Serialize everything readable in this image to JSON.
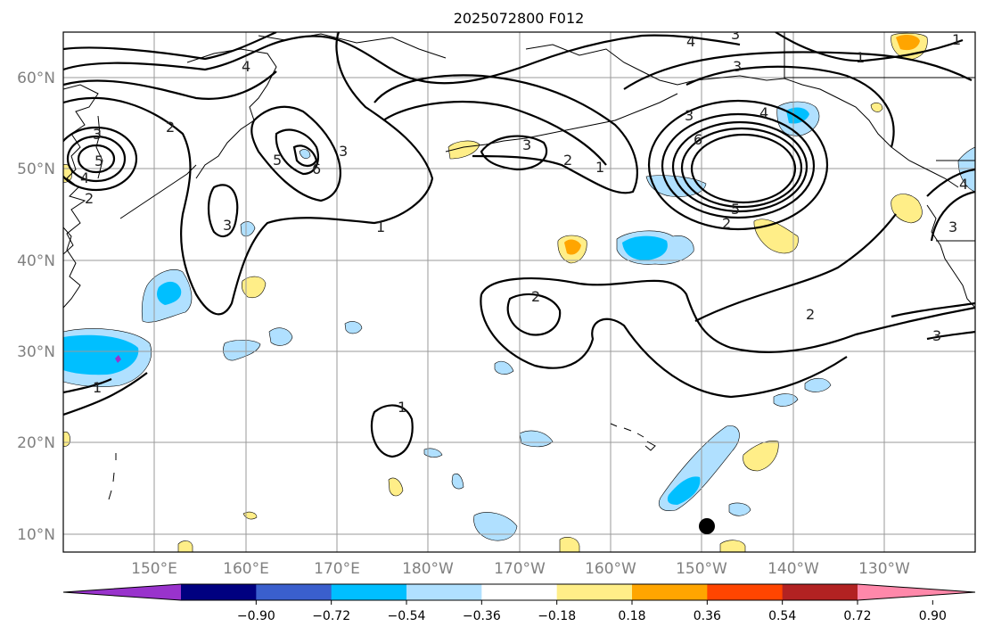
{
  "title": "2025072800 F012",
  "lat_labels": [
    "10°N",
    "20°N",
    "30°N",
    "40°N",
    "50°N",
    "60°N"
  ],
  "lon_labels": [
    "150°E",
    "160°E",
    "170°E",
    "180°W",
    "170°W",
    "160°W",
    "150°W",
    "140°W",
    "130°W"
  ],
  "colorbar": {
    "ticks": [
      "−0.90",
      "−0.72",
      "−0.54",
      "−0.36",
      "−0.18",
      "0.18",
      "0.36",
      "0.54",
      "0.72",
      "0.90"
    ],
    "colors": [
      "#9933cc",
      "#000080",
      "#3a5fcd",
      "#00bfff",
      "#b0e0ff",
      "#ffffff",
      "#ffee88",
      "#ffa500",
      "#ff4500",
      "#b22222",
      "#ff88aa"
    ]
  },
  "shading_colors": {
    "light_blue": "#b0e0ff",
    "blue": "#00bfff",
    "purple": "#9933cc",
    "yellow": "#ffee88",
    "orange": "#ffa500"
  },
  "contour_labels": [
    "1",
    "2",
    "3",
    "4",
    "5",
    "6"
  ],
  "marker": {
    "type": "black-dot",
    "lat": 11,
    "lon": -150
  }
}
